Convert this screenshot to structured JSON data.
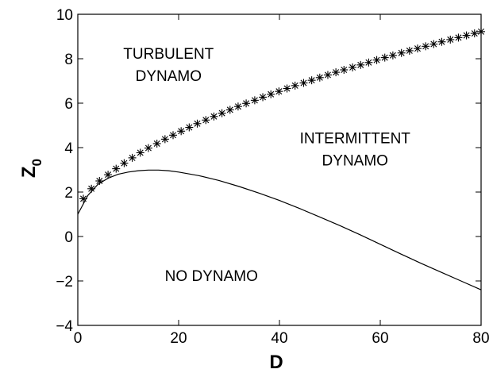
{
  "chart_data": {
    "type": "line",
    "title": "",
    "xlabel": "D",
    "ylabel": "Z",
    "ylabel_subscript": "0",
    "xlim": [
      0,
      80
    ],
    "ylim": [
      -4,
      10
    ],
    "xticks": [
      0,
      20,
      40,
      60,
      80
    ],
    "yticks": [
      -4,
      -2,
      0,
      2,
      4,
      6,
      8,
      10
    ],
    "grid": false,
    "legend": "none",
    "series": [
      {
        "style": "line",
        "color": "#000000",
        "x": [
          0,
          2,
          4,
          6,
          8,
          10,
          12,
          14,
          16,
          18,
          20,
          24,
          28,
          32,
          36,
          40,
          44,
          48,
          52,
          56,
          60,
          64,
          68,
          72,
          76,
          80
        ],
        "y": [
          1.0,
          1.85,
          2.35,
          2.62,
          2.8,
          2.9,
          2.96,
          2.99,
          2.99,
          2.96,
          2.9,
          2.74,
          2.52,
          2.25,
          1.95,
          1.62,
          1.26,
          0.88,
          0.49,
          0.08,
          -0.35,
          -0.78,
          -1.2,
          -1.6,
          -2.0,
          -2.4
        ]
      },
      {
        "style": "markers",
        "marker": "*",
        "color": "#000000",
        "x": [
          1.1,
          2.7,
          4.3,
          6.0,
          7.6,
          9.2,
          10.8,
          12.4,
          14.0,
          15.7,
          17.3,
          18.9,
          20.5,
          22.1,
          23.7,
          25.4,
          27.0,
          28.6,
          30.2,
          31.8,
          33.4,
          35.1,
          36.7,
          38.3,
          39.9,
          41.5,
          43.1,
          44.8,
          46.4,
          48.0,
          49.6,
          51.2,
          52.8,
          54.5,
          56.1,
          57.7,
          59.3,
          60.9,
          62.5,
          64.2,
          65.8,
          67.4,
          69.0,
          70.6,
          72.2,
          73.9,
          75.5,
          77.1,
          78.7,
          80.0
        ],
        "y": [
          1.7,
          2.15,
          2.5,
          2.78,
          3.05,
          3.3,
          3.54,
          3.77,
          3.98,
          4.18,
          4.38,
          4.56,
          4.74,
          4.91,
          5.08,
          5.24,
          5.4,
          5.55,
          5.7,
          5.85,
          5.99,
          6.13,
          6.27,
          6.4,
          6.53,
          6.66,
          6.79,
          6.91,
          7.03,
          7.15,
          7.27,
          7.39,
          7.5,
          7.61,
          7.72,
          7.83,
          7.94,
          8.05,
          8.15,
          8.26,
          8.36,
          8.46,
          8.56,
          8.66,
          8.76,
          8.86,
          8.95,
          9.05,
          9.14,
          9.22
        ]
      }
    ],
    "annotations": [
      {
        "lines": [
          "TURBULENT",
          "DYNAMO"
        ],
        "x": 18,
        "y": 8.0
      },
      {
        "lines": [
          "INTERMITTENT",
          "DYNAMO"
        ],
        "x": 55,
        "y": 4.2
      },
      {
        "lines": [
          "NO DYNAMO"
        ],
        "x": 26.5,
        "y": -2.0
      }
    ]
  }
}
